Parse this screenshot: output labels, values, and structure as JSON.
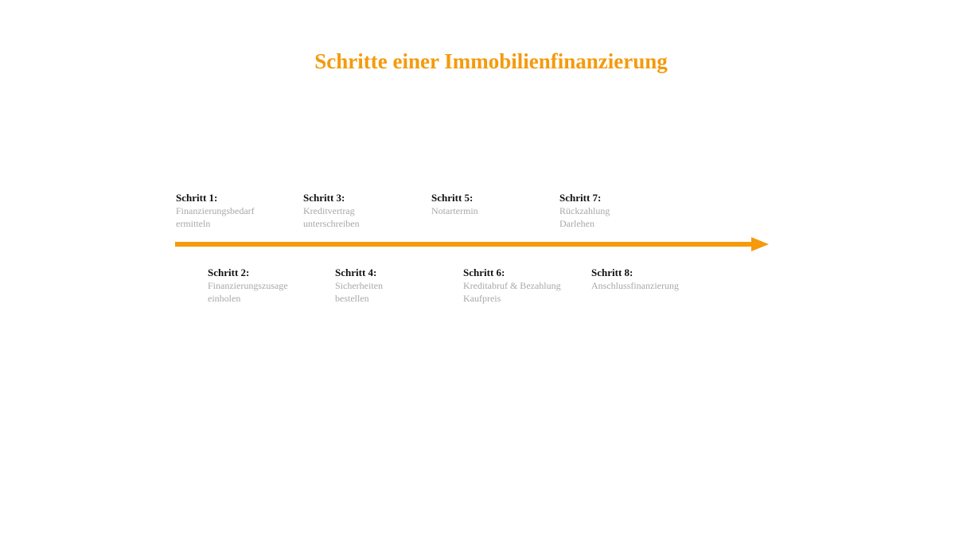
{
  "title": "Schritte einer Immobilienfinanzierung",
  "accent_color": "#f59a0c",
  "steps": [
    {
      "label": "Schritt 1:",
      "text": "Finanzierungsbedarf ermitteln"
    },
    {
      "label": "Schritt 2:",
      "text": "Finanzierungszusage einholen"
    },
    {
      "label": "Schritt 3:",
      "text": "Kreditvertrag unterschreiben"
    },
    {
      "label": "Schritt 4:",
      "text": "Sicherheiten bestellen"
    },
    {
      "label": "Schritt 5:",
      "text": "Notartermin"
    },
    {
      "label": "Schritt 6:",
      "text": "Kreditabruf & Bezahlung Kaufpreis"
    },
    {
      "label": "Schritt 7:",
      "text": "Rückzahlung Darlehen"
    },
    {
      "label": "Schritt 8:",
      "text": "Anschlussfinanzierung"
    }
  ]
}
